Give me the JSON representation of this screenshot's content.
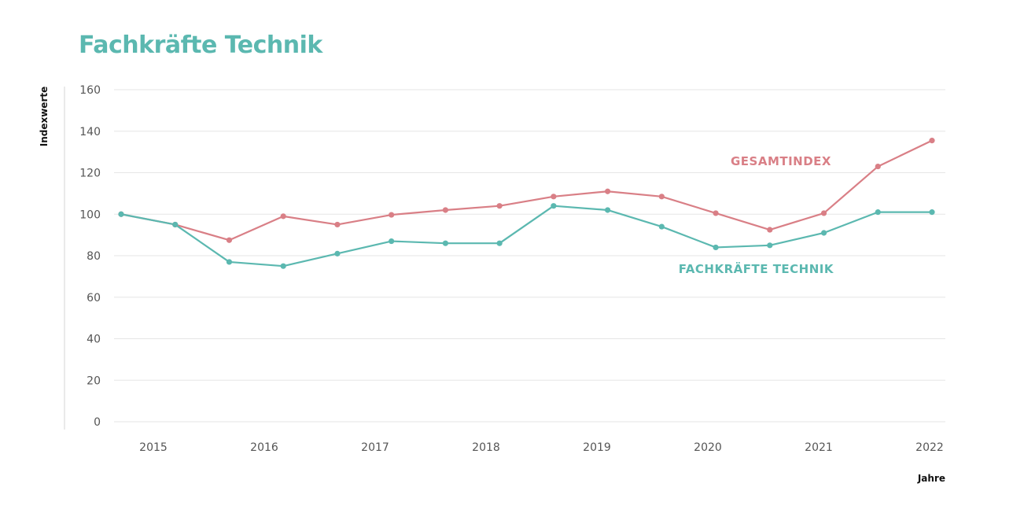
{
  "chart_data": {
    "type": "line",
    "title": "Fachkräfte Technik",
    "xlabel": "Jahre",
    "ylabel": "Indexwerte",
    "ylim": [
      0,
      160
    ],
    "yticks": [
      0,
      20,
      40,
      60,
      80,
      100,
      120,
      140,
      160
    ],
    "xticks": [
      "2015",
      "2016",
      "2017",
      "2018",
      "2019",
      "2020",
      "2021",
      "2022"
    ],
    "grid": true,
    "series": [
      {
        "name": "GESAMTINDEX",
        "color": "#d97f86",
        "values": [
          100,
          95,
          87.5,
          99,
          95,
          99.7,
          102,
          104,
          108.5,
          111,
          108.5,
          100.5,
          92.5,
          100.5,
          123,
          135.5
        ]
      },
      {
        "name": "FACHKRÄFTE TECHNIK",
        "color": "#5bb8b0",
        "values": [
          100,
          95,
          77,
          75,
          81,
          87,
          86,
          86,
          104,
          102,
          94,
          84,
          85,
          91,
          101,
          101
        ]
      }
    ]
  }
}
